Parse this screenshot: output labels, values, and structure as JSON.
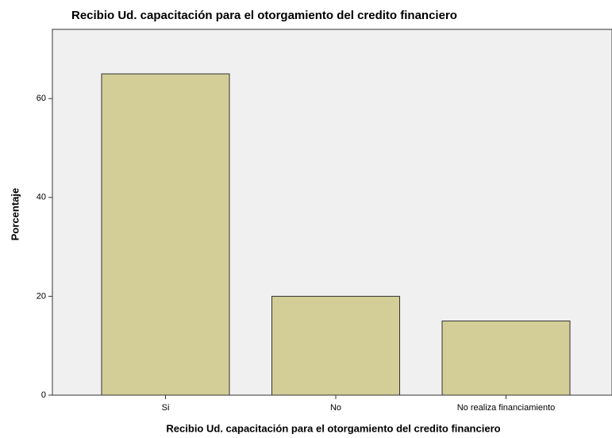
{
  "chart_data": {
    "type": "bar",
    "title": "Recibio Ud. capacitación para el otorgamiento del credito financiero",
    "x_label": "Recibio Ud. capacitación para el otorgamiento del credito financiero",
    "y_label": "Porcentaje",
    "categories": [
      "Si",
      "No",
      "No realiza financiamiento"
    ],
    "values": [
      65,
      20,
      15
    ],
    "color": "#d3ce97",
    "ylim": [
      0,
      74
    ],
    "yticks": [
      0,
      20,
      40,
      60
    ],
    "grid": false
  }
}
